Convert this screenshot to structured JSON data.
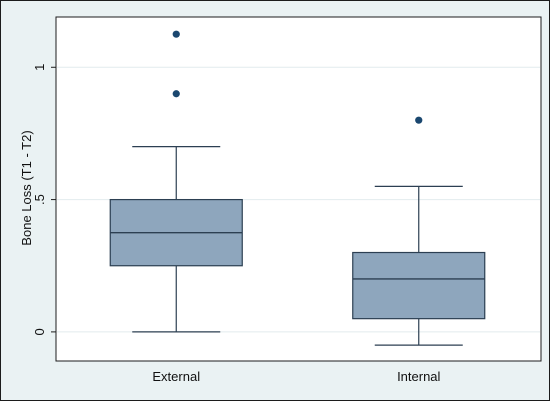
{
  "chart_data": {
    "type": "box",
    "title": "",
    "xlabel": "",
    "ylabel": "Bone Loss (T1 - T2)",
    "ylim": [
      -0.11,
      1.19
    ],
    "yticks": [
      {
        "value": 0,
        "label": "0"
      },
      {
        "value": 0.5,
        "label": ".5"
      },
      {
        "value": 1,
        "label": "1"
      }
    ],
    "grid": true,
    "categories": [
      "External",
      "Internal"
    ],
    "boxes": [
      {
        "name": "External",
        "whisker_low": 0.0,
        "q1": 0.25,
        "median": 0.375,
        "q3": 0.5,
        "whisker_high": 0.7,
        "outliers": [
          0.9,
          1.125
        ]
      },
      {
        "name": "Internal",
        "whisker_low": -0.05,
        "q1": 0.05,
        "median": 0.2,
        "q3": 0.3,
        "whisker_high": 0.55,
        "outliers": [
          0.8
        ]
      }
    ],
    "colors": {
      "box_fill": "#8ea6bd",
      "box_stroke": "#2c3f52",
      "outlier": "#1a476f",
      "grid": "#e2ebee",
      "plot_bg": "#ffffff"
    }
  }
}
